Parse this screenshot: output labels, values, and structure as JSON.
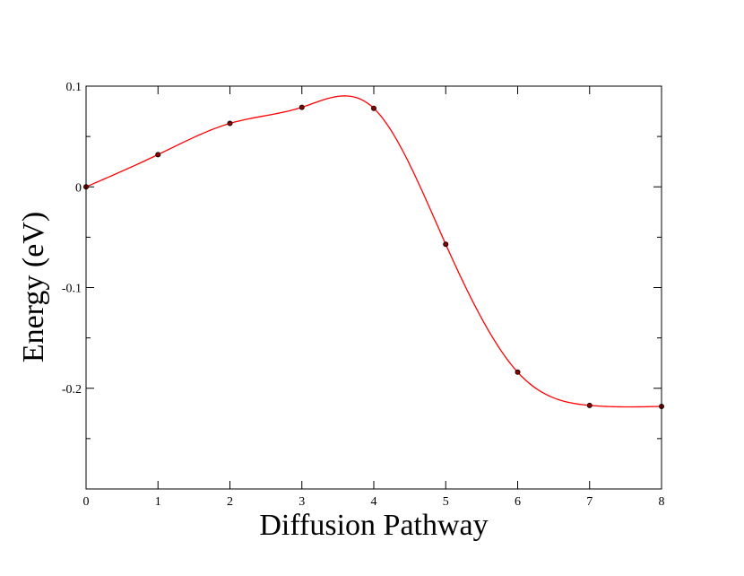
{
  "chart_data": {
    "type": "line",
    "title": "",
    "xlabel": "Diffusion Pathway",
    "ylabel": "Energy (eV)",
    "xlim": [
      0,
      8
    ],
    "ylim": [
      -0.3,
      0.1
    ],
    "x_ticks": [
      0,
      1,
      2,
      3,
      4,
      5,
      6,
      7,
      8
    ],
    "x_tick_labels": [
      "0",
      "1",
      "2",
      "3",
      "4",
      "5",
      "6",
      "7",
      "8"
    ],
    "y_ticks": [
      0.1,
      0,
      -0.1,
      -0.2
    ],
    "y_tick_labels": [
      "0.1",
      "0",
      "-0.1",
      "-0.2"
    ],
    "grid": false,
    "legend": "none",
    "series": [
      {
        "x": [
          0,
          1,
          2,
          3,
          4,
          5,
          6,
          7,
          8
        ],
        "values": [
          0.0,
          0.032,
          0.063,
          0.079,
          0.078,
          -0.057,
          -0.184,
          -0.217,
          -0.218
        ],
        "line_color": "#ff0000",
        "marker_color": "#8b0000",
        "smooth": true
      }
    ]
  }
}
